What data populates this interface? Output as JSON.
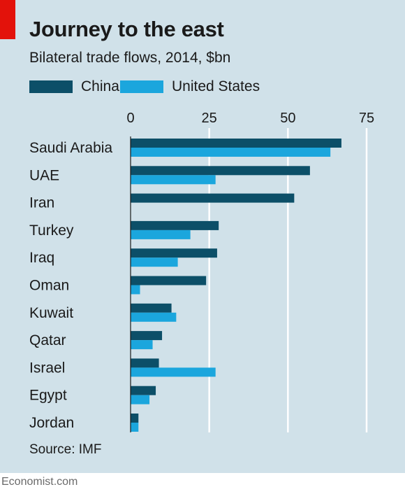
{
  "title": "Journey to the east",
  "subtitle": "Bilateral trade flows, 2014, $bn",
  "source": "Source: IMF",
  "footer": "Economist.com",
  "colors": {
    "china": "#0c4f68",
    "us": "#1ba6dd",
    "background": "#d0e1e9",
    "accent": "#e3120b"
  },
  "chart_data": {
    "type": "bar",
    "orientation": "horizontal",
    "title": "Journey to the east",
    "subtitle": "Bilateral trade flows, 2014, $bn",
    "xlim": [
      0,
      75
    ],
    "xticks": [
      0,
      25,
      50,
      75
    ],
    "grid": true,
    "legend": "top-left",
    "categories": [
      "Saudi Arabia",
      "UAE",
      "Iran",
      "Turkey",
      "Iraq",
      "Oman",
      "Kuwait",
      "Qatar",
      "Israel",
      "Egypt",
      "Jordan"
    ],
    "series": [
      {
        "name": "China",
        "color": "#0c4f68",
        "values": [
          67,
          57,
          52,
          28,
          27.5,
          24,
          13,
          10,
          9,
          8,
          2.5
        ]
      },
      {
        "name": "United States",
        "color": "#1ba6dd",
        "values": [
          63.5,
          27,
          0,
          19,
          15,
          3,
          14.5,
          7,
          27,
          6,
          2.5
        ]
      }
    ]
  }
}
